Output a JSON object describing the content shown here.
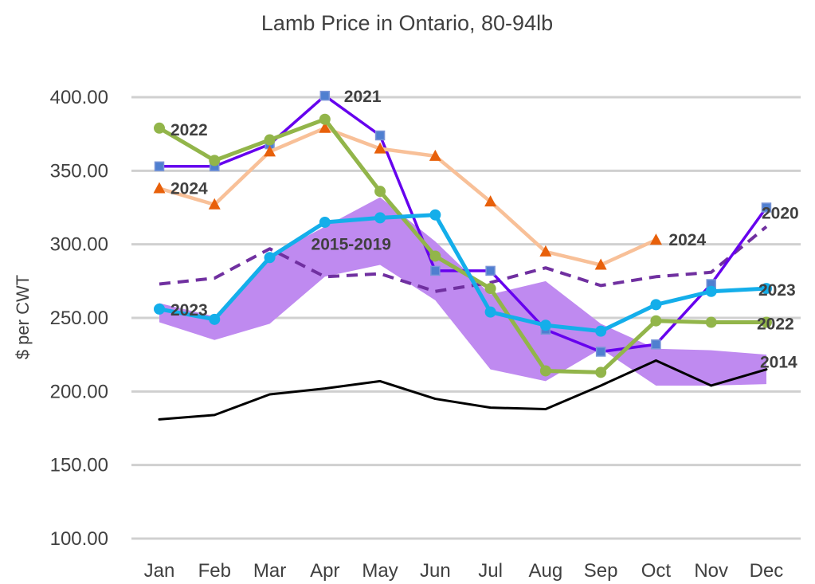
{
  "chart_data": {
    "type": "line",
    "title": "Lamb Price in Ontario, 80-94lb",
    "xlabel": "",
    "ylabel": "$ per CWT",
    "categories": [
      "Jan",
      "Feb",
      "Mar",
      "Apr",
      "May",
      "Jun",
      "Jul",
      "Aug",
      "Sep",
      "Oct",
      "Nov",
      "Dec"
    ],
    "ylim": [
      100,
      400
    ],
    "yticks": [
      "100.00",
      "150.00",
      "200.00",
      "250.00",
      "300.00",
      "350.00",
      "400.00"
    ],
    "grid": "horizontal",
    "band": {
      "name": "2015-2019",
      "color": "#bf8af0",
      "low": [
        247,
        235,
        246,
        278,
        286,
        262,
        215,
        207,
        229,
        204,
        204,
        205
      ],
      "high": [
        260,
        251,
        292,
        312,
        332,
        302,
        266,
        275,
        246,
        229,
        228,
        225
      ]
    },
    "series": [
      {
        "name": "2014",
        "color": "#000000",
        "width": 3,
        "dash": "",
        "marker": "none",
        "values": [
          181,
          184,
          198,
          202,
          207,
          195,
          189,
          188,
          204,
          221,
          204,
          215
        ]
      },
      {
        "name": "2020",
        "color": "#7030a0",
        "width": 4,
        "dash": "dash",
        "marker": "none",
        "values": [
          273,
          277,
          297,
          278,
          280,
          268,
          274,
          284,
          272,
          278,
          281,
          312
        ]
      },
      {
        "name": "2021",
        "color": "#6600ee",
        "width": 3.5,
        "dash": "",
        "marker": "square",
        "values": [
          353,
          353,
          368,
          401,
          374,
          282,
          282,
          242,
          227,
          232,
          273,
          325
        ]
      },
      {
        "name": "2024",
        "color": "#f8c098",
        "width": 4.5,
        "dash": "",
        "marker": "triangle",
        "marker_color": "#e8600a",
        "values": [
          338,
          327,
          363,
          379,
          365,
          360,
          329,
          295,
          286,
          303,
          null,
          null
        ]
      },
      {
        "name": "2022",
        "color": "#92b54a",
        "width": 5,
        "dash": "",
        "marker": "circle",
        "values": [
          379,
          357,
          371,
          385,
          336,
          292,
          270,
          214,
          213,
          248,
          247,
          247
        ]
      },
      {
        "name": "2023",
        "color": "#14aeea",
        "width": 5,
        "dash": "",
        "marker": "circle",
        "values": [
          256,
          249,
          291,
          315,
          318,
          320,
          254,
          245,
          241,
          259,
          268,
          270
        ]
      }
    ],
    "annotations": [
      {
        "text": "2021",
        "x": "Apr",
        "y": 401
      },
      {
        "text": "2022",
        "x": "Jan",
        "y": 379
      },
      {
        "text": "2024",
        "x": "Jan",
        "y": 338
      },
      {
        "text": "2015-2019",
        "x": "Mar",
        "y": 305
      },
      {
        "text": "2023",
        "x": "Jan",
        "y": 256
      },
      {
        "text": "2024",
        "x": "Oct",
        "y": 303
      },
      {
        "text": "2020",
        "x": "Dec",
        "y": 312
      },
      {
        "text": "2023",
        "x": "Dec",
        "y": 270
      },
      {
        "text": "2022",
        "x": "Dec",
        "y": 247
      },
      {
        "text": "2014",
        "x": "Dec",
        "y": 215
      }
    ]
  }
}
